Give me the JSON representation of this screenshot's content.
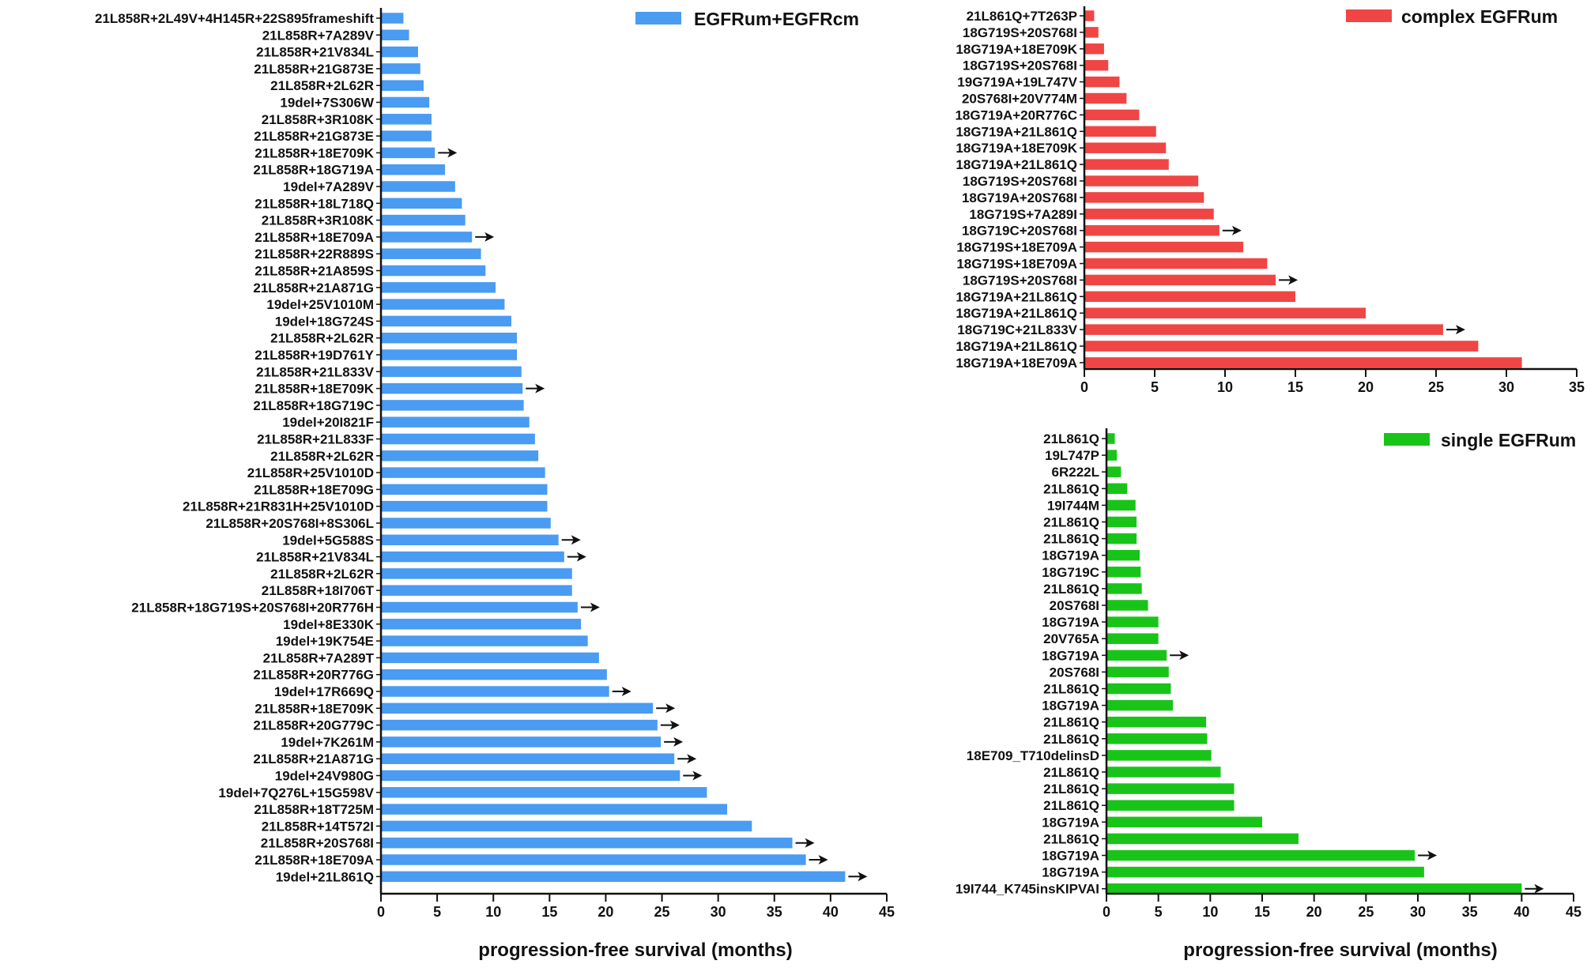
{
  "chart_data": [
    {
      "id": "mixed",
      "type": "bar",
      "orientation": "horizontal",
      "legend": "EGFRum+EGFRcm",
      "legend_position": "top-right",
      "color": "#4a9bf2",
      "xlabel": "progression-free survival (months)",
      "xlim": [
        0,
        45
      ],
      "xticks": [
        0,
        5,
        10,
        15,
        20,
        25,
        30,
        35,
        40,
        45
      ],
      "categories": [
        "21L858R+2L49V+4H145R+22S895frameshift",
        "21L858R+7A289V",
        "21L858R+21V834L",
        "21L858R+21G873E",
        "21L858R+2L62R",
        "19del+7S306W",
        "21L858R+3R108K",
        "21L858R+21G873E",
        "21L858R+18E709K",
        "21L858R+18G719A",
        "19del+7A289V",
        "21L858R+18L718Q",
        "21L858R+3R108K",
        "21L858R+18E709A",
        "21L858R+22R889S",
        "21L858R+21A859S",
        "21L858R+21A871G",
        "19del+25V1010M",
        "19del+18G724S",
        "21L858R+2L62R",
        "21L858R+19D761Y",
        "21L858R+21L833V",
        "21L858R+18E709K",
        "21L858R+18G719C",
        "19del+20I821F",
        "21L858R+21L833F",
        "21L858R+2L62R",
        "21L858R+25V1010D",
        "21L858R+18E709G",
        "21L858R+21R831H+25V1010D",
        "21L858R+20S768I+8S306L",
        "19del+5G588S",
        "21L858R+21V834L",
        "21L858R+2L62R",
        "21L858R+18I706T",
        "21L858R+18G719S+20S768I+20R776H",
        "19del+8E330K",
        "19del+19K754E",
        "21L858R+7A289T",
        "21L858R+20R776G",
        "19del+17R669Q",
        "21L858R+18E709K",
        "21L858R+20G779C",
        "19del+7K261M",
        "21L858R+21A871G",
        "19del+24V980G",
        "19del+7Q276L+15G598V",
        "21L858R+18T725M",
        "21L858R+14T572I",
        "21L858R+20S768I",
        "21L858R+18E709A",
        "19del+21L861Q"
      ],
      "values": [
        2.0,
        2.5,
        3.3,
        3.5,
        3.8,
        4.3,
        4.5,
        4.5,
        4.8,
        5.7,
        6.6,
        7.2,
        7.5,
        8.1,
        8.9,
        9.3,
        10.2,
        11.0,
        11.6,
        12.1,
        12.1,
        12.5,
        12.6,
        12.7,
        13.2,
        13.7,
        14.0,
        14.6,
        14.8,
        14.8,
        15.1,
        15.8,
        16.3,
        17.0,
        17.0,
        17.5,
        17.8,
        18.4,
        19.4,
        20.1,
        20.3,
        24.2,
        24.6,
        24.9,
        26.1,
        26.6,
        29.0,
        30.8,
        33.0,
        36.6,
        37.8,
        41.3
      ],
      "censored_arrow": [
        false,
        false,
        false,
        false,
        false,
        false,
        false,
        false,
        true,
        false,
        false,
        false,
        false,
        true,
        false,
        false,
        false,
        false,
        false,
        false,
        false,
        false,
        true,
        false,
        false,
        false,
        false,
        false,
        false,
        false,
        false,
        true,
        true,
        false,
        false,
        true,
        false,
        false,
        false,
        false,
        true,
        true,
        true,
        true,
        true,
        true,
        false,
        false,
        false,
        true,
        true,
        true
      ]
    },
    {
      "id": "complex",
      "type": "bar",
      "orientation": "horizontal",
      "legend": "complex EGFRum",
      "legend_position": "top-right",
      "color": "#f04545",
      "xlabel": "",
      "xlim": [
        0,
        35
      ],
      "xticks": [
        0,
        5,
        10,
        15,
        20,
        25,
        30,
        35
      ],
      "categories": [
        "21L861Q+7T263P",
        "18G719S+20S768I",
        "18G719A+18E709K",
        "18G719S+20S768I",
        "19G719A+19L747V",
        "20S768I+20V774M",
        "18G719A+20R776C",
        "18G719A+21L861Q",
        "18G719A+18E709K",
        "18G719A+21L861Q",
        "18G719S+20S768I",
        "18G719A+20S768I",
        "18G719S+7A289I",
        "18G719C+20S768I",
        "18G719S+18E709A",
        "18G719S+18E709A",
        "18G719S+20S768I",
        "18G719A+21L861Q",
        "18G719A+21L861Q",
        "18G719C+21L833V",
        "18G719A+21L861Q",
        "18G719A+18E709A"
      ],
      "values": [
        0.7,
        1.0,
        1.4,
        1.7,
        2.5,
        3.0,
        3.9,
        5.1,
        5.8,
        6.0,
        8.1,
        8.5,
        9.2,
        9.6,
        11.3,
        13.0,
        13.6,
        15.0,
        20.0,
        25.5,
        28.0,
        31.1
      ],
      "censored_arrow": [
        false,
        false,
        false,
        false,
        false,
        false,
        false,
        false,
        false,
        false,
        false,
        false,
        false,
        true,
        false,
        false,
        true,
        false,
        false,
        true,
        false,
        false
      ]
    },
    {
      "id": "single",
      "type": "bar",
      "orientation": "horizontal",
      "legend": "single EGFRum",
      "legend_position": "top-right",
      "color": "#19c419",
      "xlabel": "progression-free survival (months)",
      "xlim": [
        0,
        45
      ],
      "xticks": [
        0,
        5,
        10,
        15,
        20,
        25,
        30,
        35,
        40,
        45
      ],
      "categories": [
        "21L861Q",
        "19L747P",
        "6R222L",
        "21L861Q",
        "19I744M",
        "21L861Q",
        "21L861Q",
        "18G719A",
        "18G719C",
        "21L861Q",
        "20S768I",
        "18G719A",
        "20V765A",
        "18G719A",
        "20S768I",
        "21L861Q",
        "18G719A",
        "21L861Q",
        "21L861Q",
        "18E709_T710delinsD",
        "21L861Q",
        "21L861Q",
        "21L861Q",
        "18G719A",
        "21L861Q",
        "18G719A",
        "18G719A",
        "19I744_K745insKIPVAI"
      ],
      "values": [
        0.8,
        1.0,
        1.4,
        2.0,
        2.8,
        2.9,
        2.9,
        3.2,
        3.3,
        3.4,
        4.0,
        5.0,
        5.0,
        5.8,
        6.0,
        6.2,
        6.4,
        9.6,
        9.7,
        10.1,
        11.0,
        12.3,
        12.3,
        15.0,
        18.5,
        29.7,
        30.6,
        40.0
      ],
      "censored_arrow": [
        false,
        false,
        false,
        false,
        false,
        false,
        false,
        false,
        false,
        false,
        false,
        false,
        false,
        true,
        false,
        false,
        false,
        false,
        false,
        false,
        false,
        false,
        false,
        false,
        false,
        true,
        false,
        true
      ]
    }
  ]
}
